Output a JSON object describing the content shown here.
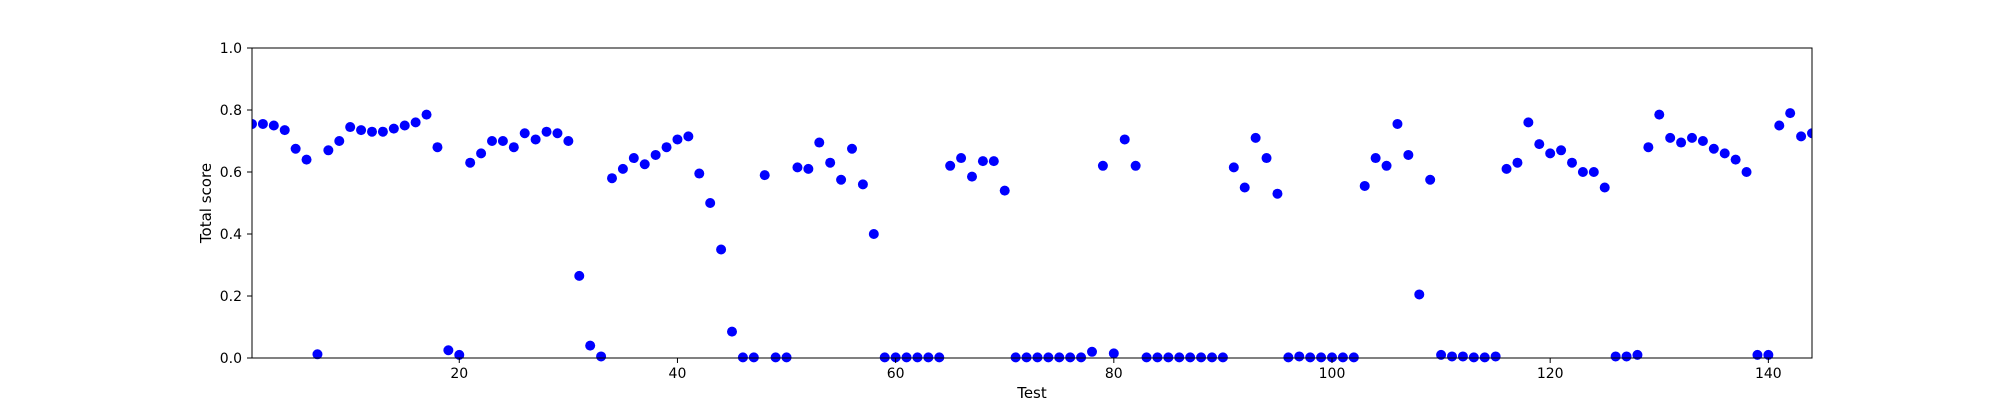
{
  "chart_data": {
    "type": "scatter",
    "title": "",
    "xlabel": "Test",
    "ylabel": "Total score",
    "xlim": [
      1,
      144
    ],
    "ylim": [
      0.0,
      1.0
    ],
    "x_ticks": [
      20,
      40,
      60,
      80,
      100,
      120,
      140
    ],
    "x_tick_labels": [
      "20",
      "40",
      "60",
      "80",
      "100",
      "120",
      "140"
    ],
    "y_ticks": [
      0.0,
      0.2,
      0.4,
      0.6,
      0.8,
      1.0
    ],
    "y_tick_labels": [
      "0.0",
      "0.2",
      "0.4",
      "0.6",
      "0.8",
      "1.0"
    ],
    "grid": false,
    "legend": "none",
    "marker_color": "#0000ff",
    "series": [
      {
        "x": [
          1,
          2,
          3,
          4,
          5,
          6,
          7,
          8,
          9,
          10,
          11,
          12,
          13,
          14,
          15,
          16,
          17,
          18,
          19,
          20,
          21,
          22,
          23,
          24,
          25,
          26,
          27,
          28,
          29,
          30,
          31,
          32,
          33,
          34,
          35,
          36,
          37,
          38,
          39,
          40,
          41,
          42,
          43,
          44,
          45,
          46,
          47,
          48,
          49,
          50,
          51,
          52,
          53,
          54,
          55,
          56,
          57,
          58,
          59,
          60,
          61,
          62,
          63,
          64,
          65,
          66,
          67,
          68,
          69,
          70,
          71,
          72,
          73,
          74,
          75,
          76,
          77,
          78,
          79,
          80,
          81,
          82,
          83,
          84,
          85,
          86,
          87,
          88,
          89,
          90,
          91,
          92,
          93,
          94,
          95,
          96,
          97,
          98,
          99,
          100,
          101,
          102,
          103,
          104,
          105,
          106,
          107,
          108,
          109,
          110,
          111,
          112,
          113,
          114,
          115,
          116,
          117,
          118,
          119,
          120,
          121,
          122,
          123,
          124,
          125,
          126,
          127,
          128,
          129,
          130,
          131,
          132,
          133,
          134,
          135,
          136,
          137,
          138,
          139,
          140,
          141,
          142,
          143,
          144
        ],
        "y": [
          0.755,
          0.755,
          0.75,
          0.735,
          0.675,
          0.64,
          0.012,
          0.67,
          0.7,
          0.745,
          0.735,
          0.73,
          0.73,
          0.74,
          0.75,
          0.76,
          0.785,
          0.68,
          0.025,
          0.01,
          0.63,
          0.66,
          0.7,
          0.7,
          0.68,
          0.725,
          0.705,
          0.73,
          0.725,
          0.7,
          0.265,
          0.04,
          0.005,
          0.58,
          0.61,
          0.645,
          0.625,
          0.655,
          0.68,
          0.705,
          0.715,
          0.595,
          0.5,
          0.35,
          0.085,
          0.002,
          0.002,
          0.59,
          0.002,
          0.002,
          0.615,
          0.61,
          0.695,
          0.63,
          0.575,
          0.675,
          0.56,
          0.4,
          0.002,
          0.002,
          0.002,
          0.002,
          0.002,
          0.002,
          0.62,
          0.645,
          0.585,
          0.635,
          0.635,
          0.54,
          0.002,
          0.002,
          0.002,
          0.002,
          0.002,
          0.002,
          0.002,
          0.02,
          0.62,
          0.015,
          0.705,
          0.62,
          0.002,
          0.002,
          0.002,
          0.002,
          0.002,
          0.002,
          0.002,
          0.002,
          0.615,
          0.55,
          0.71,
          0.645,
          0.53,
          0.002,
          0.005,
          0.002,
          0.002,
          0.002,
          0.002,
          0.002,
          0.555,
          0.645,
          0.62,
          0.755,
          0.655,
          0.205,
          0.575,
          0.01,
          0.005,
          0.005,
          0.002,
          0.002,
          0.005,
          0.61,
          0.63,
          0.76,
          0.69,
          0.66,
          0.67,
          0.63,
          0.6,
          0.6,
          0.55,
          0.005,
          0.005,
          0.01,
          0.68,
          0.785,
          0.71,
          0.695,
          0.71,
          0.7,
          0.675,
          0.66,
          0.64,
          0.6,
          0.01,
          0.01,
          0.75,
          0.79,
          0.715,
          0.725
        ]
      }
    ]
  }
}
